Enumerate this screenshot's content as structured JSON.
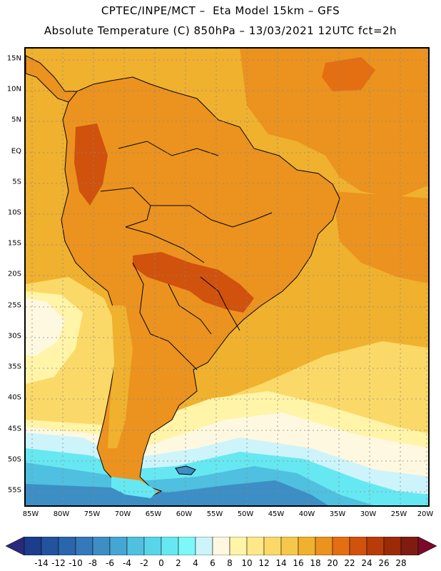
{
  "header": {
    "line1": "CPTEC/INPE/MCT –  Eta Model 15km – GFS",
    "line2": "Absolute Temperature (C) 850hPa – 13/03/2021 12UTC fct=2h"
  },
  "axes": {
    "lat_labels": [
      "15N",
      "10N",
      "5N",
      "EQ",
      "5S",
      "10S",
      "15S",
      "20S",
      "25S",
      "30S",
      "35S",
      "40S",
      "45S",
      "50S",
      "55S"
    ],
    "lon_labels": [
      "85W",
      "80W",
      "75W",
      "70W",
      "65W",
      "60W",
      "55W",
      "50W",
      "45W",
      "40W",
      "35W",
      "30W",
      "25W",
      "20W"
    ],
    "grid": "dotted"
  },
  "colorbar": {
    "labels": [
      "-14",
      "-12",
      "-10",
      "-8",
      "-6",
      "-4",
      "-2",
      "0",
      "2",
      "4",
      "6",
      "8",
      "10",
      "12",
      "14",
      "16",
      "18",
      "20",
      "22",
      "24",
      "26",
      "28"
    ],
    "colors": [
      "#1c3c8c",
      "#23539c",
      "#2b66ad",
      "#3579ba",
      "#3c8ec5",
      "#45a6d4",
      "#4fc0df",
      "#58d5ea",
      "#66e8f2",
      "#7df7f8",
      "#cdf4fb",
      "#fff8e0",
      "#fff4a8",
      "#ffe888",
      "#fbd968",
      "#f5c74a",
      "#f0b12e",
      "#eb931e",
      "#e36f12",
      "#d0520c",
      "#b83c08",
      "#9c2a06",
      "#7e1c12"
    ],
    "left_arrow_color": "#2a2a7a",
    "right_arrow_color": "#7a0a2a"
  },
  "map_colors": {
    "ocean_warm": "#f0b12e",
    "ocean_hot": "#eb931e",
    "continent": "#eb931e",
    "hot_core": "#d0520c",
    "mild": "#fbd968",
    "pale": "#fff4a8",
    "cream": "#fff8e0",
    "light_cyan": "#cdf4fb",
    "cyan": "#66e8f2",
    "cyan_mid": "#4fc0df",
    "blue": "#3c8ec5",
    "blue_dark": "#3579ba",
    "outline": "#000000"
  }
}
